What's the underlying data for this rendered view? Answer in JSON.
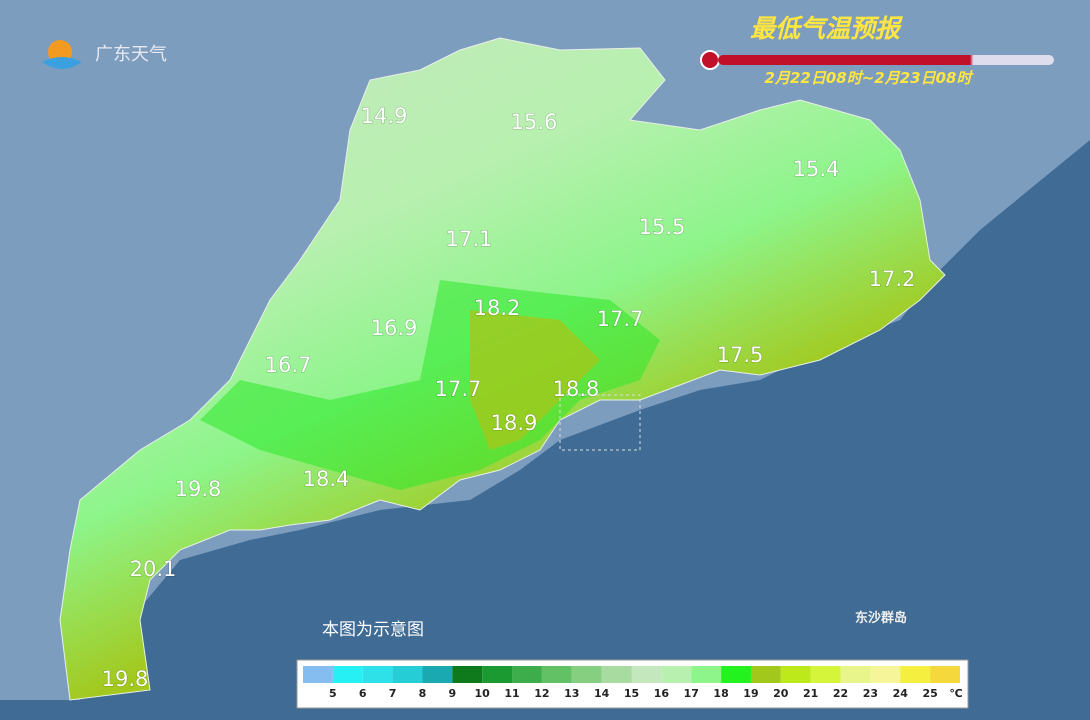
{
  "header": {
    "logo": "广东天气",
    "title": "最低气温预报",
    "period": "2月22日08时~2月23日08时"
  },
  "stations": [
    14.9,
    15.6,
    15.4,
    15.5,
    17.1,
    17.2,
    18.2,
    17.7,
    16.9,
    16.7,
    17.5,
    17.7,
    18.8,
    18.9,
    18.4,
    19.8,
    20.1,
    19.8
  ],
  "note": "本图为示意图",
  "island": "东沙群岛",
  "legend": {
    "colors": [
      "#86bdf0",
      "#27f0f5",
      "#2ee0e8",
      "#25ced6",
      "#1aa9b0",
      "#0f7a1c",
      "#1a9a30",
      "#3cad4a",
      "#62c065",
      "#86cf80",
      "#a8dba0",
      "#c5e7be",
      "#b8f0b0",
      "#8df58a",
      "#22f21e",
      "#a3c81c",
      "#bde81a",
      "#d4f53a",
      "#e8f58a",
      "#f7f59a",
      "#f5f040",
      "#f5d93c"
    ],
    "labels": [
      5,
      6,
      7,
      8,
      9,
      10,
      11,
      12,
      13,
      14,
      15,
      16,
      17,
      18,
      19,
      20,
      21,
      22,
      23,
      24,
      25
    ],
    "unit": "℃"
  }
}
